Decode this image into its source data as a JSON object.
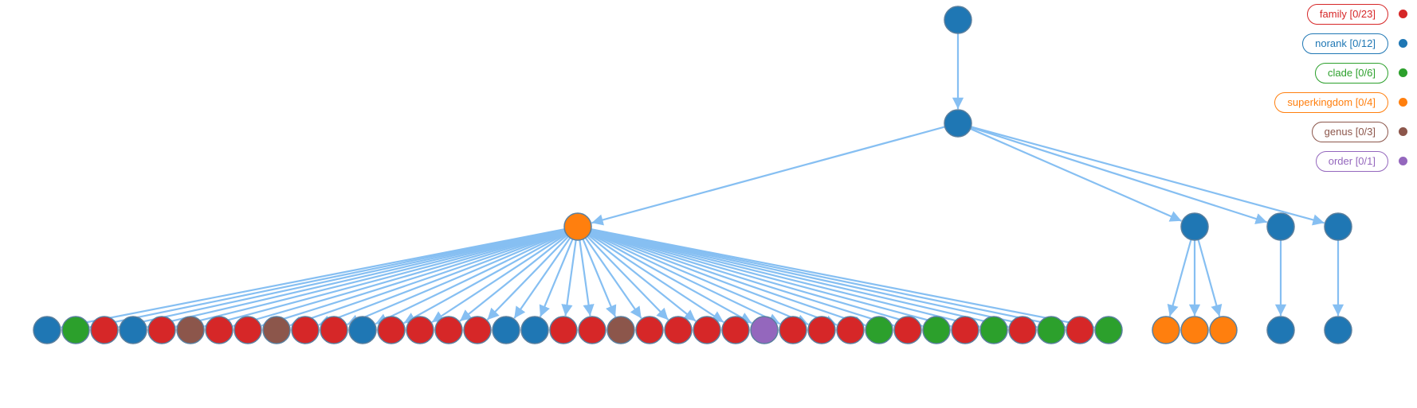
{
  "legend": [
    {
      "label": "family [0/23]",
      "color": "#d62728"
    },
    {
      "label": "norank [0/12]",
      "color": "#1f77b4"
    },
    {
      "label": "clade [0/6]",
      "color": "#2ca02c"
    },
    {
      "label": "superkingdom [0/4]",
      "color": "#ff7f0e"
    },
    {
      "label": "genus [0/3]",
      "color": "#8c564b"
    },
    {
      "label": "order [0/1]",
      "color": "#9467bd"
    }
  ],
  "colors": {
    "family": "#d62728",
    "norank": "#1f77b4",
    "clade": "#2ca02c",
    "superkingdom": "#ff7f0e",
    "genus": "#8c564b",
    "order": "#9467bd",
    "edge": "#86bff2",
    "node_stroke": "#5a7f9e"
  },
  "tree": {
    "rank": "norank",
    "children": [
      {
        "rank": "norank",
        "children": [
          {
            "rank": "superkingdom",
            "children": [
              {
                "rank": "norank"
              },
              {
                "rank": "clade"
              },
              {
                "rank": "family"
              },
              {
                "rank": "norank"
              },
              {
                "rank": "family"
              },
              {
                "rank": "genus"
              },
              {
                "rank": "family"
              },
              {
                "rank": "family"
              },
              {
                "rank": "genus"
              },
              {
                "rank": "family"
              },
              {
                "rank": "family"
              },
              {
                "rank": "norank"
              },
              {
                "rank": "family"
              },
              {
                "rank": "family"
              },
              {
                "rank": "family"
              },
              {
                "rank": "family"
              },
              {
                "rank": "norank"
              },
              {
                "rank": "norank"
              },
              {
                "rank": "family"
              },
              {
                "rank": "family"
              },
              {
                "rank": "genus"
              },
              {
                "rank": "family"
              },
              {
                "rank": "family"
              },
              {
                "rank": "family"
              },
              {
                "rank": "family"
              },
              {
                "rank": "order"
              },
              {
                "rank": "family"
              },
              {
                "rank": "family"
              },
              {
                "rank": "family"
              },
              {
                "rank": "clade"
              },
              {
                "rank": "family"
              },
              {
                "rank": "clade"
              },
              {
                "rank": "family"
              },
              {
                "rank": "clade"
              },
              {
                "rank": "family"
              },
              {
                "rank": "clade"
              },
              {
                "rank": "family"
              },
              {
                "rank": "clade"
              }
            ]
          },
          {
            "rank": "norank",
            "children": [
              {
                "rank": "superkingdom"
              },
              {
                "rank": "superkingdom"
              },
              {
                "rank": "superkingdom"
              }
            ]
          },
          {
            "rank": "norank",
            "children": [
              {
                "rank": "norank"
              }
            ]
          },
          {
            "rank": "norank",
            "children": [
              {
                "rank": "norank"
              }
            ]
          }
        ]
      }
    ]
  }
}
